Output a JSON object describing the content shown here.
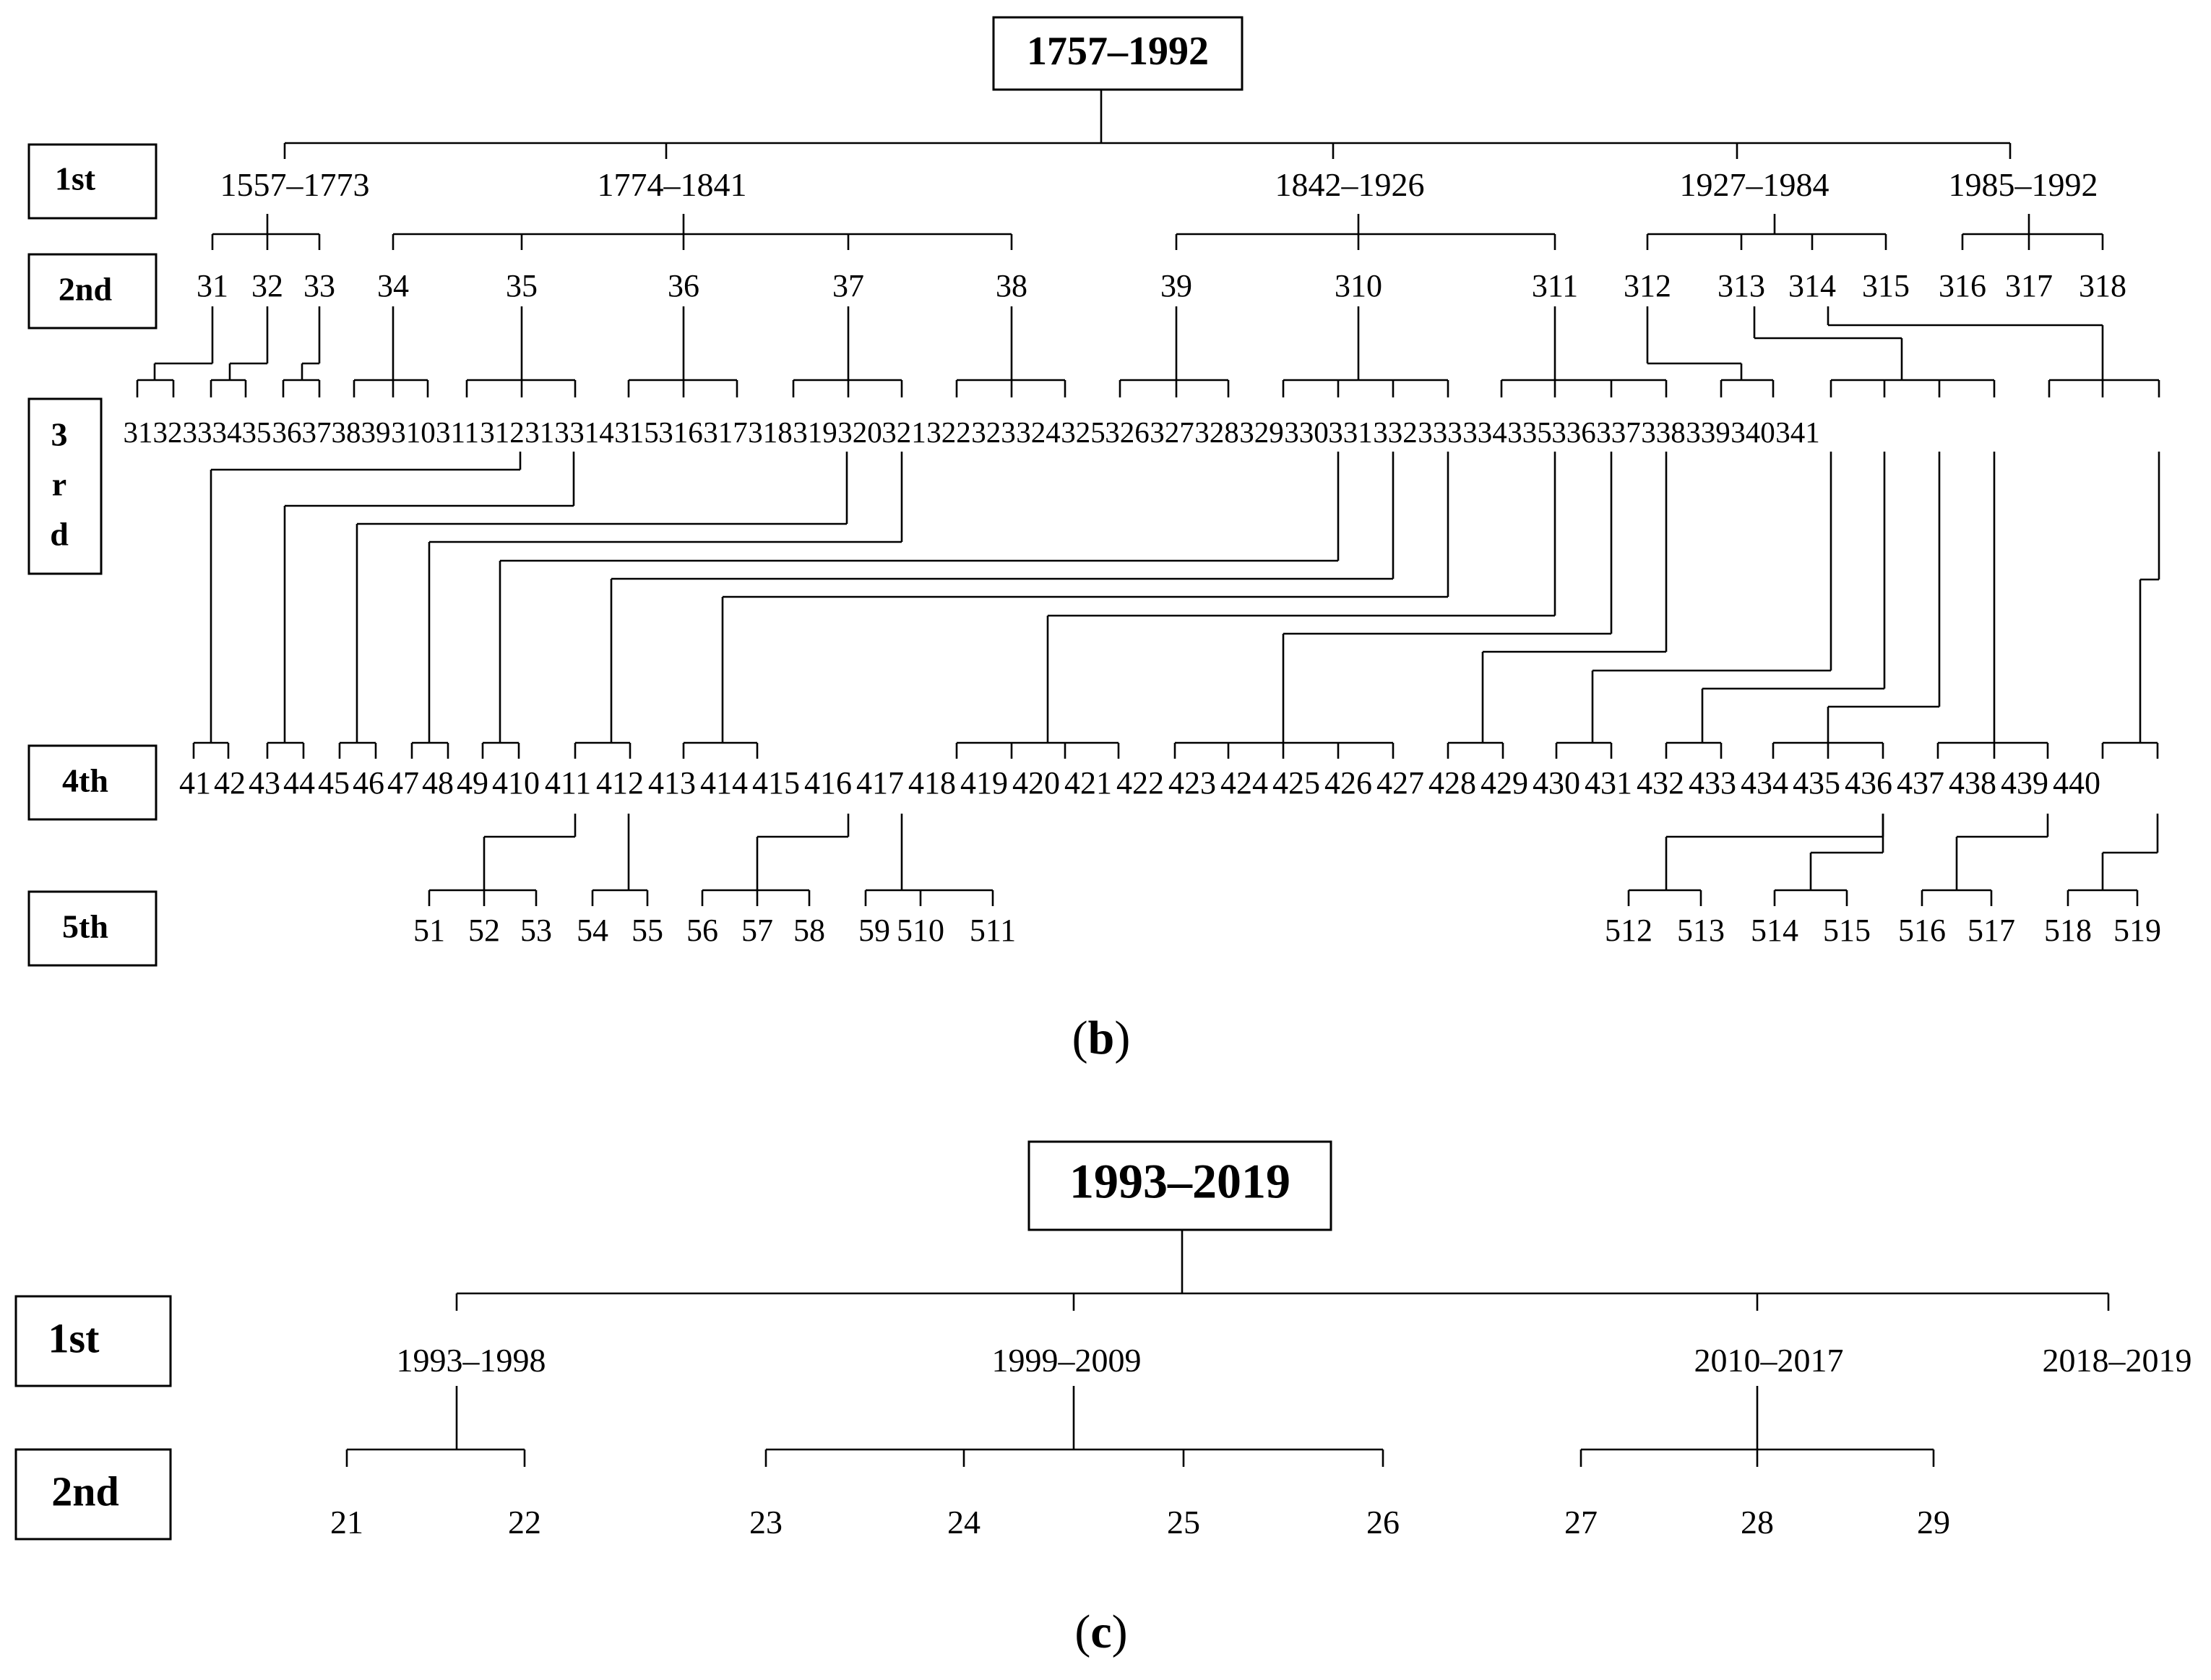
{
  "panel_b": {
    "caption_letter": "b",
    "root": "1757–1992",
    "level_labels": [
      "1st",
      "2nd",
      "3",
      "r",
      "d",
      "4th",
      "5th"
    ],
    "first": [
      "1557–1773",
      "1774–1841",
      "1842–1926",
      "1927–1984",
      "1985–1992"
    ],
    "second": [
      "31",
      "32",
      "33",
      "34",
      "35",
      "36",
      "37",
      "38",
      "39",
      "310",
      "311",
      "312",
      "313",
      "314",
      "315",
      "316",
      "317",
      "318"
    ],
    "third": [
      "31",
      "32",
      "33",
      "34",
      "35",
      "36",
      "37",
      "38",
      "39",
      "310",
      "311",
      "312",
      "313",
      "314",
      "315",
      "316",
      "317",
      "318",
      "319",
      "320",
      "321",
      "322",
      "323",
      "324",
      "325",
      "326",
      "327",
      "328",
      "329",
      "330",
      "331",
      "332",
      "333",
      "334",
      "335",
      "336",
      "337",
      "338",
      "339",
      "340",
      "341"
    ],
    "fourth": [
      "41",
      "42",
      "43",
      "44",
      "45",
      "46",
      "47",
      "48",
      "49",
      "410",
      "411",
      "412",
      "413",
      "414",
      "415",
      "416",
      "417",
      "418",
      "419",
      "420",
      "421",
      "422",
      "423",
      "424",
      "425",
      "426",
      "427",
      "428",
      "429",
      "430",
      "431",
      "432",
      "433",
      "434",
      "435",
      "436",
      "437",
      "438",
      "439",
      "440"
    ],
    "fifth": [
      "51",
      "52",
      "53",
      "54",
      "55",
      "56",
      "57",
      "58",
      "59",
      "510",
      "511",
      "512",
      "513",
      "514",
      "515",
      "516",
      "517",
      "518",
      "519"
    ]
  },
  "panel_c": {
    "caption_letter": "c",
    "root": "1993–2019",
    "level_labels": [
      "1st",
      "2nd"
    ],
    "first": [
      "1993–1998",
      "1999–2009",
      "2010–2017",
      "2018–2019"
    ],
    "second": [
      "21",
      "22",
      "23",
      "24",
      "25",
      "26",
      "27",
      "28",
      "29"
    ]
  },
  "caption_open": "(",
  "caption_close": ")"
}
